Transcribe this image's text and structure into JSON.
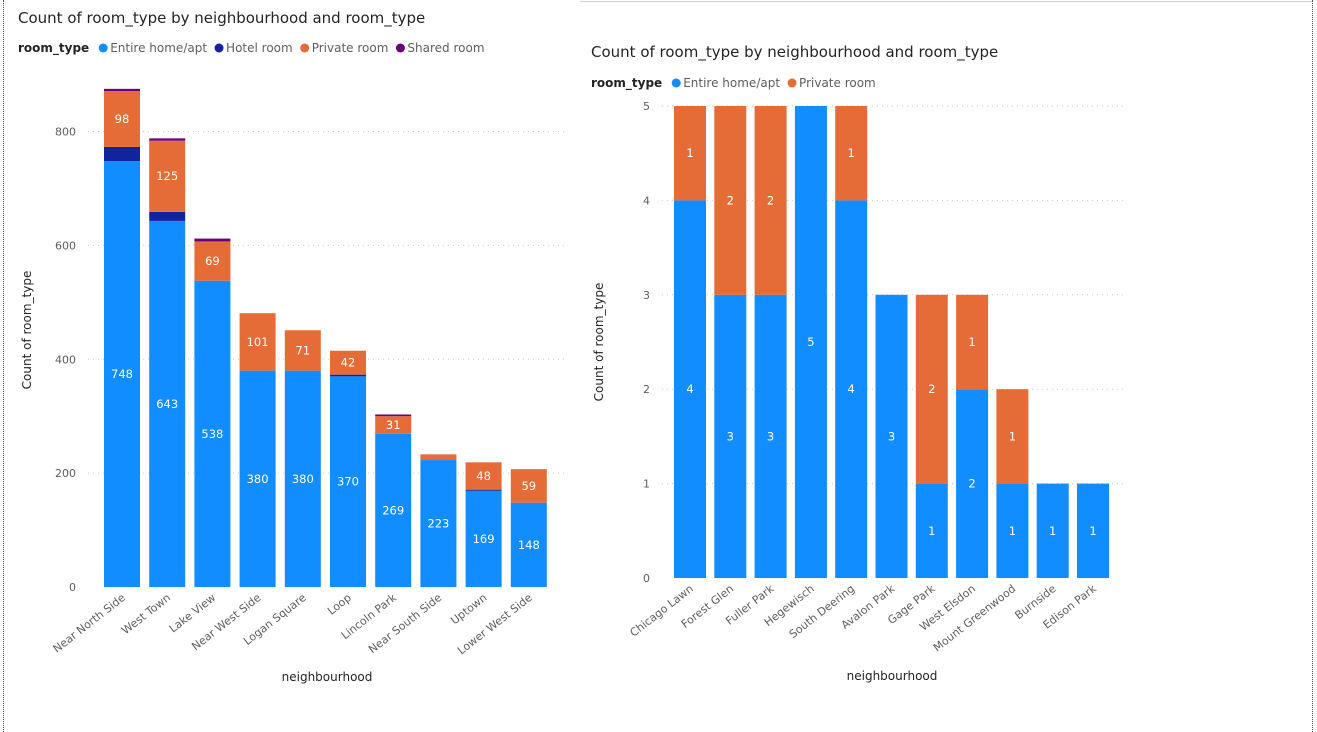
{
  "colors": {
    "Entire home/apt": "#118dff",
    "Hotel room": "#12239e",
    "Private room": "#e66c37",
    "Shared room": "#6b007b"
  },
  "chart_data": [
    {
      "type": "bar",
      "stacked": true,
      "title": "Count of room_type by neighbourhood and room_type",
      "legend_title": "room_type",
      "legend_position": "top-left",
      "xlabel": "neighbourhood",
      "ylabel": "Count of room_type",
      "ylim": [
        0,
        880
      ],
      "yticks": [
        0,
        200,
        400,
        600,
        800
      ],
      "yticks_labels": [
        "0",
        "200",
        "400",
        "600",
        "800"
      ],
      "grid": true,
      "categories": [
        "Near North Side",
        "West Town",
        "Lake View",
        "Near West Side",
        "Logan Square",
        "Loop",
        "Lincoln Park",
        "Near South Side",
        "Uptown",
        "Lower West Side"
      ],
      "series": [
        {
          "name": "Entire home/apt",
          "values": [
            748,
            643,
            538,
            380,
            380,
            370,
            269,
            223,
            169,
            148
          ],
          "labels": [
            "748",
            "643",
            "538",
            "380",
            "380",
            "370",
            "269",
            "223",
            "169",
            "148"
          ]
        },
        {
          "name": "Hotel room",
          "values": [
            25,
            16,
            0,
            0,
            0,
            3,
            0,
            0,
            2,
            0
          ],
          "labels": [
            "",
            "",
            "",
            "",
            "",
            "",
            "",
            "",
            "",
            ""
          ]
        },
        {
          "name": "Private room",
          "values": [
            98,
            125,
            69,
            101,
            71,
            42,
            31,
            10,
            48,
            59
          ],
          "labels": [
            "98",
            "125",
            "69",
            "101",
            "71",
            "42",
            "31",
            "",
            "48",
            "59"
          ]
        },
        {
          "name": "Shared room",
          "values": [
            4,
            4,
            5,
            0,
            0,
            0,
            3,
            0,
            0,
            0
          ],
          "labels": [
            "",
            "",
            "",
            "",
            "",
            "",
            "",
            "",
            "",
            ""
          ]
        }
      ]
    },
    {
      "type": "bar",
      "stacked": true,
      "title": "Count of room_type by neighbourhood and room_type",
      "legend_title": "room_type",
      "legend_position": "top-left",
      "xlabel": "neighbourhood",
      "ylabel": "Count of room_type",
      "ylim": [
        0,
        5
      ],
      "yticks": [
        0,
        1,
        2,
        3,
        4,
        5
      ],
      "yticks_labels": [
        "0",
        "1",
        "2",
        "3",
        "4",
        "5"
      ],
      "grid": true,
      "categories": [
        "Chicago Lawn",
        "Forest Glen",
        "Fuller Park",
        "Hegewisch",
        "South Deering",
        "Avalon Park",
        "Gage Park",
        "West Elsdon",
        "Mount Greenwood",
        "Burnside",
        "Edison Park"
      ],
      "series": [
        {
          "name": "Entire home/apt",
          "values": [
            4,
            3,
            3,
            5,
            4,
            3,
            1,
            2,
            1,
            1,
            1
          ],
          "labels": [
            "4",
            "3",
            "3",
            "5",
            "4",
            "3",
            "1",
            "2",
            "1",
            "1",
            "1"
          ]
        },
        {
          "name": "Private room",
          "values": [
            1,
            2,
            2,
            0,
            1,
            0,
            2,
            1,
            1,
            0,
            0
          ],
          "labels": [
            "1",
            "2",
            "2",
            "",
            "1",
            "",
            "2",
            "1",
            "1",
            "",
            ""
          ]
        }
      ]
    }
  ]
}
